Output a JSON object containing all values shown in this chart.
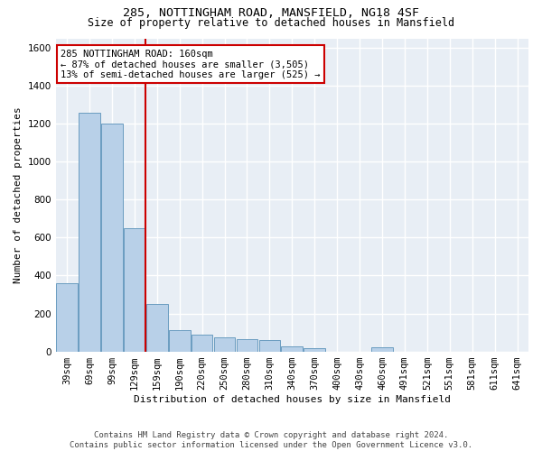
{
  "title_line1": "285, NOTTINGHAM ROAD, MANSFIELD, NG18 4SF",
  "title_line2": "Size of property relative to detached houses in Mansfield",
  "xlabel": "Distribution of detached houses by size in Mansfield",
  "ylabel": "Number of detached properties",
  "footer_line1": "Contains HM Land Registry data © Crown copyright and database right 2024.",
  "footer_line2": "Contains public sector information licensed under the Open Government Licence v3.0.",
  "categories": [
    "39sqm",
    "69sqm",
    "99sqm",
    "129sqm",
    "159sqm",
    "190sqm",
    "220sqm",
    "250sqm",
    "280sqm",
    "310sqm",
    "340sqm",
    "370sqm",
    "400sqm",
    "430sqm",
    "460sqm",
    "491sqm",
    "521sqm",
    "551sqm",
    "581sqm",
    "611sqm",
    "641sqm"
  ],
  "values": [
    360,
    1260,
    1200,
    650,
    250,
    110,
    90,
    75,
    65,
    60,
    25,
    15,
    0,
    0,
    20,
    0,
    0,
    0,
    0,
    0,
    0
  ],
  "bar_color": "#b8d0e8",
  "bar_edge_color": "#6a9cc0",
  "bg_color": "#e8eef5",
  "grid_color": "#ffffff",
  "vline_color": "#cc0000",
  "vline_x": 3.5,
  "annotation_line1": "285 NOTTINGHAM ROAD: 160sqm",
  "annotation_line2": "← 87% of detached houses are smaller (3,505)",
  "annotation_line3": "13% of semi-detached houses are larger (525) →",
  "annotation_box_color": "#cc0000",
  "ylim": [
    0,
    1650
  ],
  "yticks": [
    0,
    200,
    400,
    600,
    800,
    1000,
    1200,
    1400,
    1600
  ],
  "title_fontsize": 9.5,
  "subtitle_fontsize": 8.5,
  "footer_fontsize": 6.5,
  "axis_label_fontsize": 8,
  "tick_fontsize": 7.5,
  "annot_fontsize": 7.5
}
